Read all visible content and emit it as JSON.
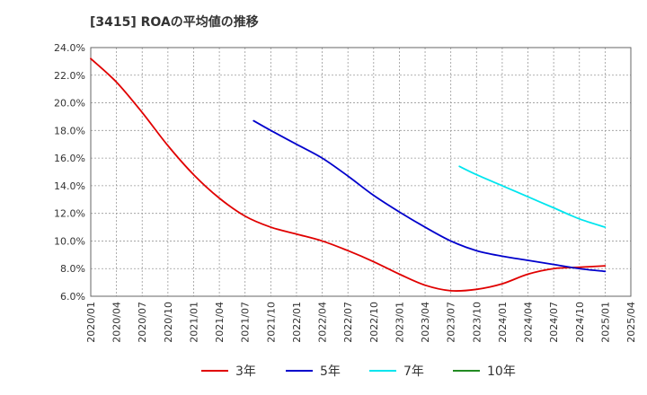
{
  "chart_data": {
    "type": "line",
    "title": "[3415]  ROAの平均値の推移",
    "xlabel": "",
    "ylabel": "",
    "ylim": [
      6.0,
      24.0
    ],
    "y_ticks": [
      "6.0%",
      "8.0%",
      "10.0%",
      "12.0%",
      "14.0%",
      "16.0%",
      "18.0%",
      "20.0%",
      "22.0%",
      "24.0%"
    ],
    "x_ticks": [
      "2020/01",
      "2020/04",
      "2020/07",
      "2020/10",
      "2021/01",
      "2021/04",
      "2021/07",
      "2021/10",
      "2022/01",
      "2022/04",
      "2022/07",
      "2022/10",
      "2023/01",
      "2023/04",
      "2023/07",
      "2023/10",
      "2024/01",
      "2024/04",
      "2024/07",
      "2024/10",
      "2025/01",
      "2025/04"
    ],
    "grid": true,
    "legend_position": "bottom",
    "series": [
      {
        "name": "3年",
        "color": "#e00000",
        "x": [
          "2020/01",
          "2020/04",
          "2020/07",
          "2020/10",
          "2021/01",
          "2021/04",
          "2021/07",
          "2021/10",
          "2022/01",
          "2022/04",
          "2022/07",
          "2022/10",
          "2023/01",
          "2023/04",
          "2023/07",
          "2023/10",
          "2024/01",
          "2024/04",
          "2024/07",
          "2024/10",
          "2025/01"
        ],
        "values": [
          23.2,
          21.5,
          19.3,
          16.9,
          14.8,
          13.1,
          11.8,
          11.0,
          10.5,
          10.0,
          9.3,
          8.5,
          7.6,
          6.8,
          6.4,
          6.5,
          6.9,
          7.6,
          8.0,
          8.1,
          8.2
        ]
      },
      {
        "name": "5年",
        "color": "#0000cc",
        "x": [
          "2021/08",
          "2021/10",
          "2022/01",
          "2022/04",
          "2022/07",
          "2022/10",
          "2023/01",
          "2023/04",
          "2023/07",
          "2023/10",
          "2024/01",
          "2024/04",
          "2024/07",
          "2024/10",
          "2025/01"
        ],
        "values": [
          18.7,
          18.0,
          17.0,
          16.0,
          14.7,
          13.3,
          12.1,
          11.0,
          10.0,
          9.3,
          8.9,
          8.6,
          8.3,
          8.0,
          7.8
        ]
      },
      {
        "name": "7年",
        "color": "#00e5ee",
        "x": [
          "2023/08",
          "2023/10",
          "2024/01",
          "2024/04",
          "2024/07",
          "2024/10",
          "2025/01"
        ],
        "values": [
          15.4,
          14.8,
          14.0,
          13.2,
          12.4,
          11.6,
          11.0
        ]
      },
      {
        "name": "10年",
        "color": "#228b22",
        "x": [],
        "values": []
      }
    ]
  }
}
